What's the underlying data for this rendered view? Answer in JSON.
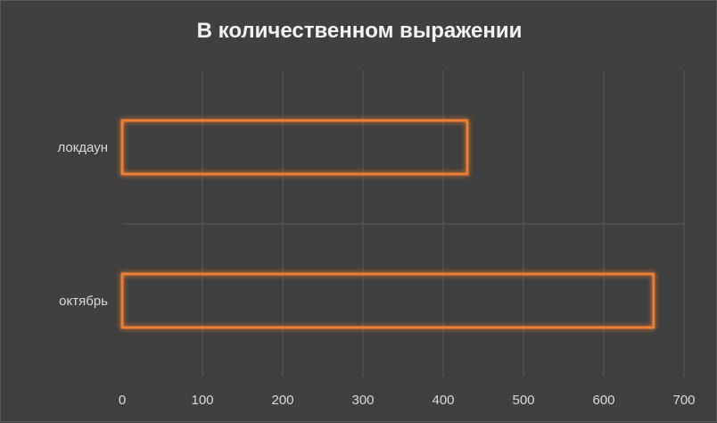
{
  "chart_data": {
    "type": "bar",
    "orientation": "horizontal",
    "title": "В количественном выражении",
    "categories": [
      "октябрь",
      "локдаун"
    ],
    "values": [
      662,
      430
    ],
    "xlim": [
      0,
      700
    ],
    "x_ticks": [
      0,
      100,
      200,
      300,
      400,
      500,
      600,
      700
    ],
    "x_tick_labels": [
      "0",
      "100",
      "200",
      "300",
      "400",
      "500",
      "600",
      "700"
    ],
    "xlabel": "",
    "ylabel": "",
    "grid": true,
    "legend": "none",
    "colors": {
      "bar_outline": "#ed7d31",
      "background": "#404040",
      "grid": "#595959",
      "text": "#d9d9d9",
      "title": "#f2f2f2"
    }
  }
}
